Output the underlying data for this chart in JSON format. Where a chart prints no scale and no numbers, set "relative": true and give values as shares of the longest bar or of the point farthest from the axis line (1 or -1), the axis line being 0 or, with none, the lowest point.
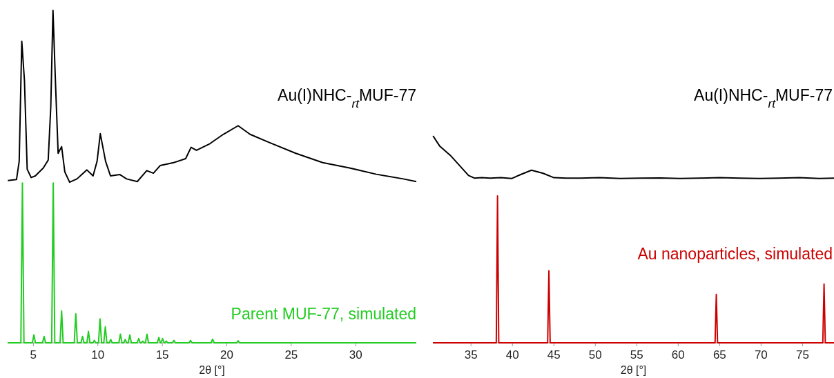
{
  "chart_data": [
    {
      "type": "line",
      "relative": true,
      "xlim": [
        3,
        34.7
      ],
      "xticks": [
        5,
        10,
        15,
        20,
        25,
        30
      ],
      "xlabel": "2θ [°]",
      "series": [
        {
          "name": "Au(I)NHC-$_{rt}$MUF-77",
          "color": "#000000",
          "x": [
            3.02,
            3.69,
            3.9,
            4.1,
            4.31,
            4.52,
            4.83,
            5.15,
            5.77,
            6.15,
            6.35,
            6.52,
            6.71,
            6.92,
            7.19,
            7.44,
            7.81,
            8.38,
            9.15,
            9.63,
            9.94,
            10.19,
            10.6,
            10.98,
            11.71,
            12.23,
            13.06,
            13.79,
            14.31,
            14.83,
            15.88,
            16.81,
            17.23,
            17.65,
            18.69,
            19.73,
            20.88,
            21.81,
            23.27,
            25.35,
            27.44,
            29.52,
            31.6,
            33.69,
            34.7
          ],
          "values": [
            0.488,
            0.491,
            0.546,
            0.907,
            0.787,
            0.522,
            0.497,
            0.502,
            0.526,
            0.55,
            0.71,
            1.0,
            0.787,
            0.57,
            0.59,
            0.514,
            0.483,
            0.493,
            0.52,
            0.502,
            0.546,
            0.629,
            0.546,
            0.502,
            0.506,
            0.493,
            0.485,
            0.518,
            0.51,
            0.533,
            0.542,
            0.554,
            0.588,
            0.579,
            0.599,
            0.627,
            0.653,
            0.627,
            0.603,
            0.57,
            0.542,
            0.526,
            0.507,
            0.493,
            0.485
          ]
        },
        {
          "name": "Parent MUF-77, simulated",
          "color": "#22cc22",
          "x": [
            3,
            4.03,
            4.15,
            4.27,
            4.92,
            5.04,
            5.16,
            5.71,
            5.83,
            5.95,
            6.42,
            6.54,
            6.66,
            7.07,
            7.19,
            7.31,
            8.17,
            8.29,
            8.41,
            8.69,
            8.81,
            8.93,
            9.15,
            9.27,
            9.39,
            9.61,
            9.73,
            9.85,
            10.05,
            10.17,
            10.29,
            10.46,
            10.58,
            10.7,
            10.88,
            11.0,
            11.12,
            11.63,
            11.75,
            11.87,
            12.0,
            12.12,
            12.24,
            12.36,
            12.48,
            12.6,
            13.05,
            13.17,
            13.29,
            13.36,
            13.48,
            13.6,
            13.69,
            13.81,
            13.93,
            14.61,
            14.73,
            14.85,
            14.9,
            15.02,
            15.14,
            15.19,
            15.31,
            15.43,
            15.78,
            15.9,
            16.02,
            17.07,
            17.19,
            17.31,
            18.78,
            18.9,
            19.02,
            20.76,
            20.88,
            21.0,
            34.7
          ],
          "values": [
            0,
            0,
            0.481,
            0,
            0,
            0.024,
            0,
            0,
            0.019,
            0,
            0,
            0.481,
            0,
            0,
            0.096,
            0,
            0,
            0.087,
            0,
            0,
            0.019,
            0,
            0,
            0.034,
            0,
            0,
            0.007,
            0,
            0,
            0.072,
            0,
            0,
            0.048,
            0,
            0,
            0.01,
            0,
            0,
            0.026,
            0,
            0,
            0.01,
            0,
            0,
            0.024,
            0,
            0,
            0.013,
            0,
            0,
            0.005,
            0,
            0,
            0.026,
            0,
            0,
            0.016,
            0,
            0,
            0.013,
            0,
            0,
            0.005,
            0,
            0,
            0.007,
            0,
            0,
            0.007,
            0,
            0,
            0.011,
            0,
            0,
            0.006,
            0,
            0
          ]
        }
      ]
    },
    {
      "type": "line",
      "relative": true,
      "xlim": [
        30.4,
        78.8
      ],
      "xticks": [
        35,
        40,
        45,
        50,
        55,
        60,
        65,
        70,
        75
      ],
      "xlabel": "2θ [°]",
      "series": [
        {
          "name": "Au(I)NHC-$_{rt}$MUF-77",
          "color": "#000000",
          "x": [
            30.42,
            31.2,
            32.5,
            33.8,
            34.7,
            35.4,
            36.3,
            37.3,
            38.6,
            39.9,
            41.1,
            42.3,
            43.7,
            45.0,
            46.5,
            48.2,
            50.5,
            53,
            55.4,
            57.8,
            60.2,
            62.6,
            65,
            67.4,
            69.8,
            72.2,
            74.6,
            77,
            78.8
          ],
          "values": [
            1.0,
            0.952,
            0.906,
            0.849,
            0.809,
            0.796,
            0.798,
            0.796,
            0.798,
            0.794,
            0.815,
            0.834,
            0.819,
            0.798,
            0.796,
            0.796,
            0.798,
            0.794,
            0.796,
            0.797,
            0.794,
            0.796,
            0.798,
            0.796,
            0.794,
            0.796,
            0.798,
            0.794,
            0.796
          ]
        },
        {
          "name": "Au nanoparticles, simulated",
          "color": "#cc0000",
          "x": [
            30.4,
            38.05,
            38.2,
            38.35,
            44.25,
            44.4,
            44.55,
            64.45,
            64.6,
            64.75,
            77.45,
            77.6,
            77.75,
            78.8
          ],
          "values": [
            0,
            0,
            0.71,
            0,
            0,
            0.348,
            0,
            0,
            0.234,
            0,
            0,
            0.284,
            0,
            0
          ]
        }
      ]
    }
  ]
}
